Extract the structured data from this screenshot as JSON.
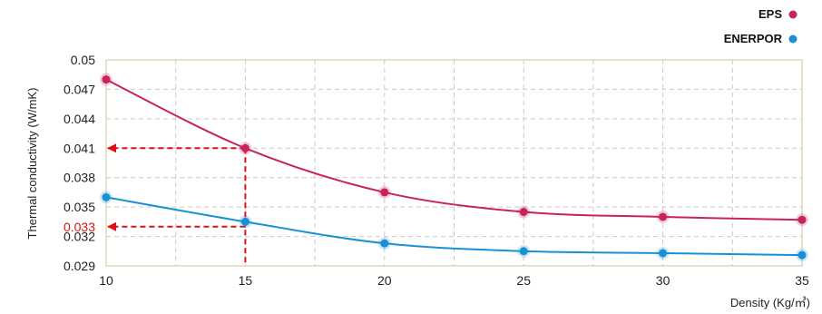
{
  "chart_data": {
    "type": "line",
    "title": "",
    "xlabel": "Density (Kg/㎥)",
    "ylabel": "Thermal conductivity (W/mK)",
    "xlim": [
      10,
      35
    ],
    "ylim": [
      0.029,
      0.05
    ],
    "x_ticks": [
      "10",
      "15",
      "20",
      "25",
      "30",
      "35"
    ],
    "y_ticks": [
      "0.029",
      "0.032",
      "0.035",
      "0.038",
      "0.041",
      "0.044",
      "0.047",
      "0.05"
    ],
    "x_tick_values": [
      10,
      15,
      20,
      25,
      30,
      35
    ],
    "y_tick_values": [
      0.029,
      0.032,
      0.035,
      0.038,
      0.041,
      0.044,
      0.047,
      0.05
    ],
    "x_minor_grid": [
      12.5,
      17.5,
      22.5,
      27.5,
      32.5
    ],
    "grid": true,
    "legend_position": "top-right",
    "series": [
      {
        "name": "EPS",
        "color": "#c8245a",
        "x": [
          10,
          15,
          20,
          25,
          30,
          35
        ],
        "y": [
          0.048,
          0.041,
          0.0365,
          0.0345,
          0.034,
          0.0337
        ]
      },
      {
        "name": "ENERPOR",
        "color": "#1a90d4",
        "x": [
          10,
          15,
          20,
          25,
          30,
          35
        ],
        "y": [
          0.036,
          0.0335,
          0.0313,
          0.0305,
          0.0303,
          0.0301
        ]
      }
    ],
    "annotations": [
      {
        "label": "0.033",
        "color": "#dd1111",
        "y": 0.033,
        "from_x": 15,
        "type": "dashed-arrow-to-y-axis"
      },
      {
        "y": 0.041,
        "from_x": 15,
        "color": "#dd1111",
        "type": "dashed-arrow-to-y-axis"
      },
      {
        "x": 15,
        "from_y": 0.041,
        "color": "#dd1111",
        "type": "dashed-drop-to-x-axis"
      }
    ]
  }
}
